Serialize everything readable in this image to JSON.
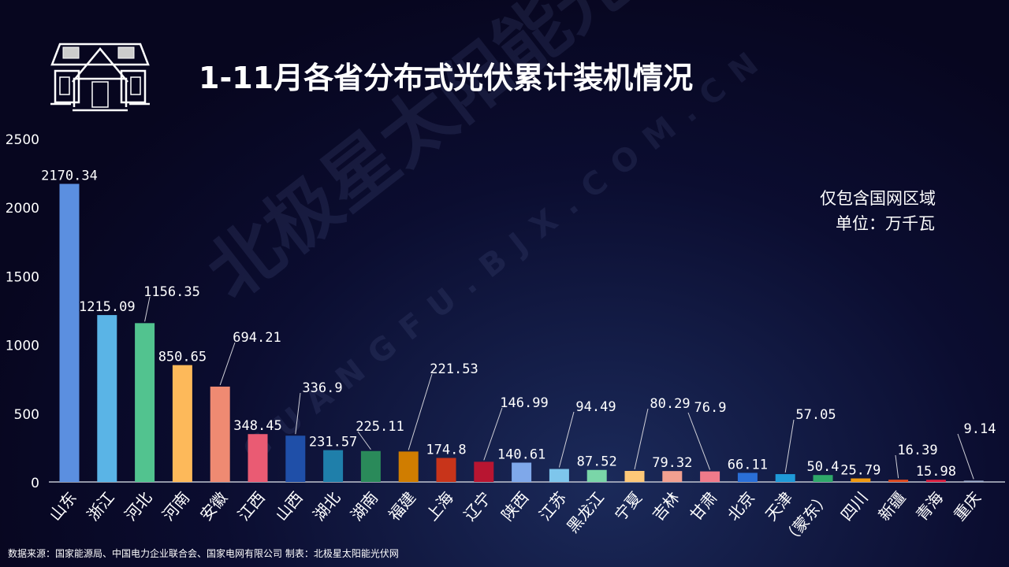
{
  "title": "1-11月各省分布式光伏累计装机情况",
  "notes": [
    "仅包含国网区域",
    "单位：万千瓦"
  ],
  "footer": "数据来源：国家能源局、中国电力企业联合会、国家电网有限公司 制表：北极星太阳能光伏网",
  "watermark": {
    "name": "北极星太阳能光伏网",
    "url": "GUANGFU.BJX.COM.CN"
  },
  "chart_data": {
    "type": "bar",
    "title": "1-11月各省分布式光伏累计装机情况",
    "xlabel": "",
    "ylabel": "万千瓦",
    "ylim": [
      0,
      2500
    ],
    "yticks": [
      "0",
      "500",
      "1000",
      "1500",
      "2000",
      "2500"
    ],
    "grid": false,
    "categories": [
      "山东",
      "浙江",
      "河北",
      "河南",
      "安徽",
      "江西",
      "山西",
      "湖北",
      "湖南",
      "福建",
      "上海",
      "辽宁",
      "陕西",
      "江苏",
      "黑龙江",
      "宁夏",
      "吉林",
      "甘肃",
      "北京",
      "天津",
      "（蒙东）",
      "四川",
      "新疆",
      "青海",
      "重庆"
    ],
    "values": [
      2170.34,
      1215.09,
      1156.35,
      850.65,
      694.21,
      348.45,
      336.9,
      231.57,
      225.11,
      221.53,
      174.8,
      146.99,
      140.61,
      94.49,
      87.52,
      80.29,
      79.32,
      76.9,
      66.11,
      57.05,
      50.4,
      25.79,
      16.39,
      15.98,
      9.14
    ],
    "labels": [
      "2170.34",
      "1215.09",
      "1156.35",
      "850.65",
      "694.21",
      "348.45",
      "336.9",
      "231.57",
      "225.11",
      "221.53",
      "174.8",
      "146.99",
      "140.61",
      "94.49",
      "87.52",
      "80.29",
      "79.32",
      "76.9",
      "66.11",
      "57.05",
      "50.4",
      "25.79",
      "16.39",
      "15.98",
      "9.14"
    ],
    "colors": [
      "#5b8fe0",
      "#5ab4e6",
      "#52c38f",
      "#fdb95a",
      "#ef8a72",
      "#ea5b73",
      "#1f4fa8",
      "#1f7faa",
      "#2a8a5a",
      "#d07d00",
      "#c8341a",
      "#b81531",
      "#7fa8ea",
      "#7ec6ec",
      "#7ad6a8",
      "#fdc878",
      "#f2a090",
      "#f07a8a",
      "#2a6fd8",
      "#1f9ad8",
      "#2fa86a",
      "#f09a10",
      "#e04a20",
      "#e02040",
      "#a0b0d0"
    ]
  }
}
